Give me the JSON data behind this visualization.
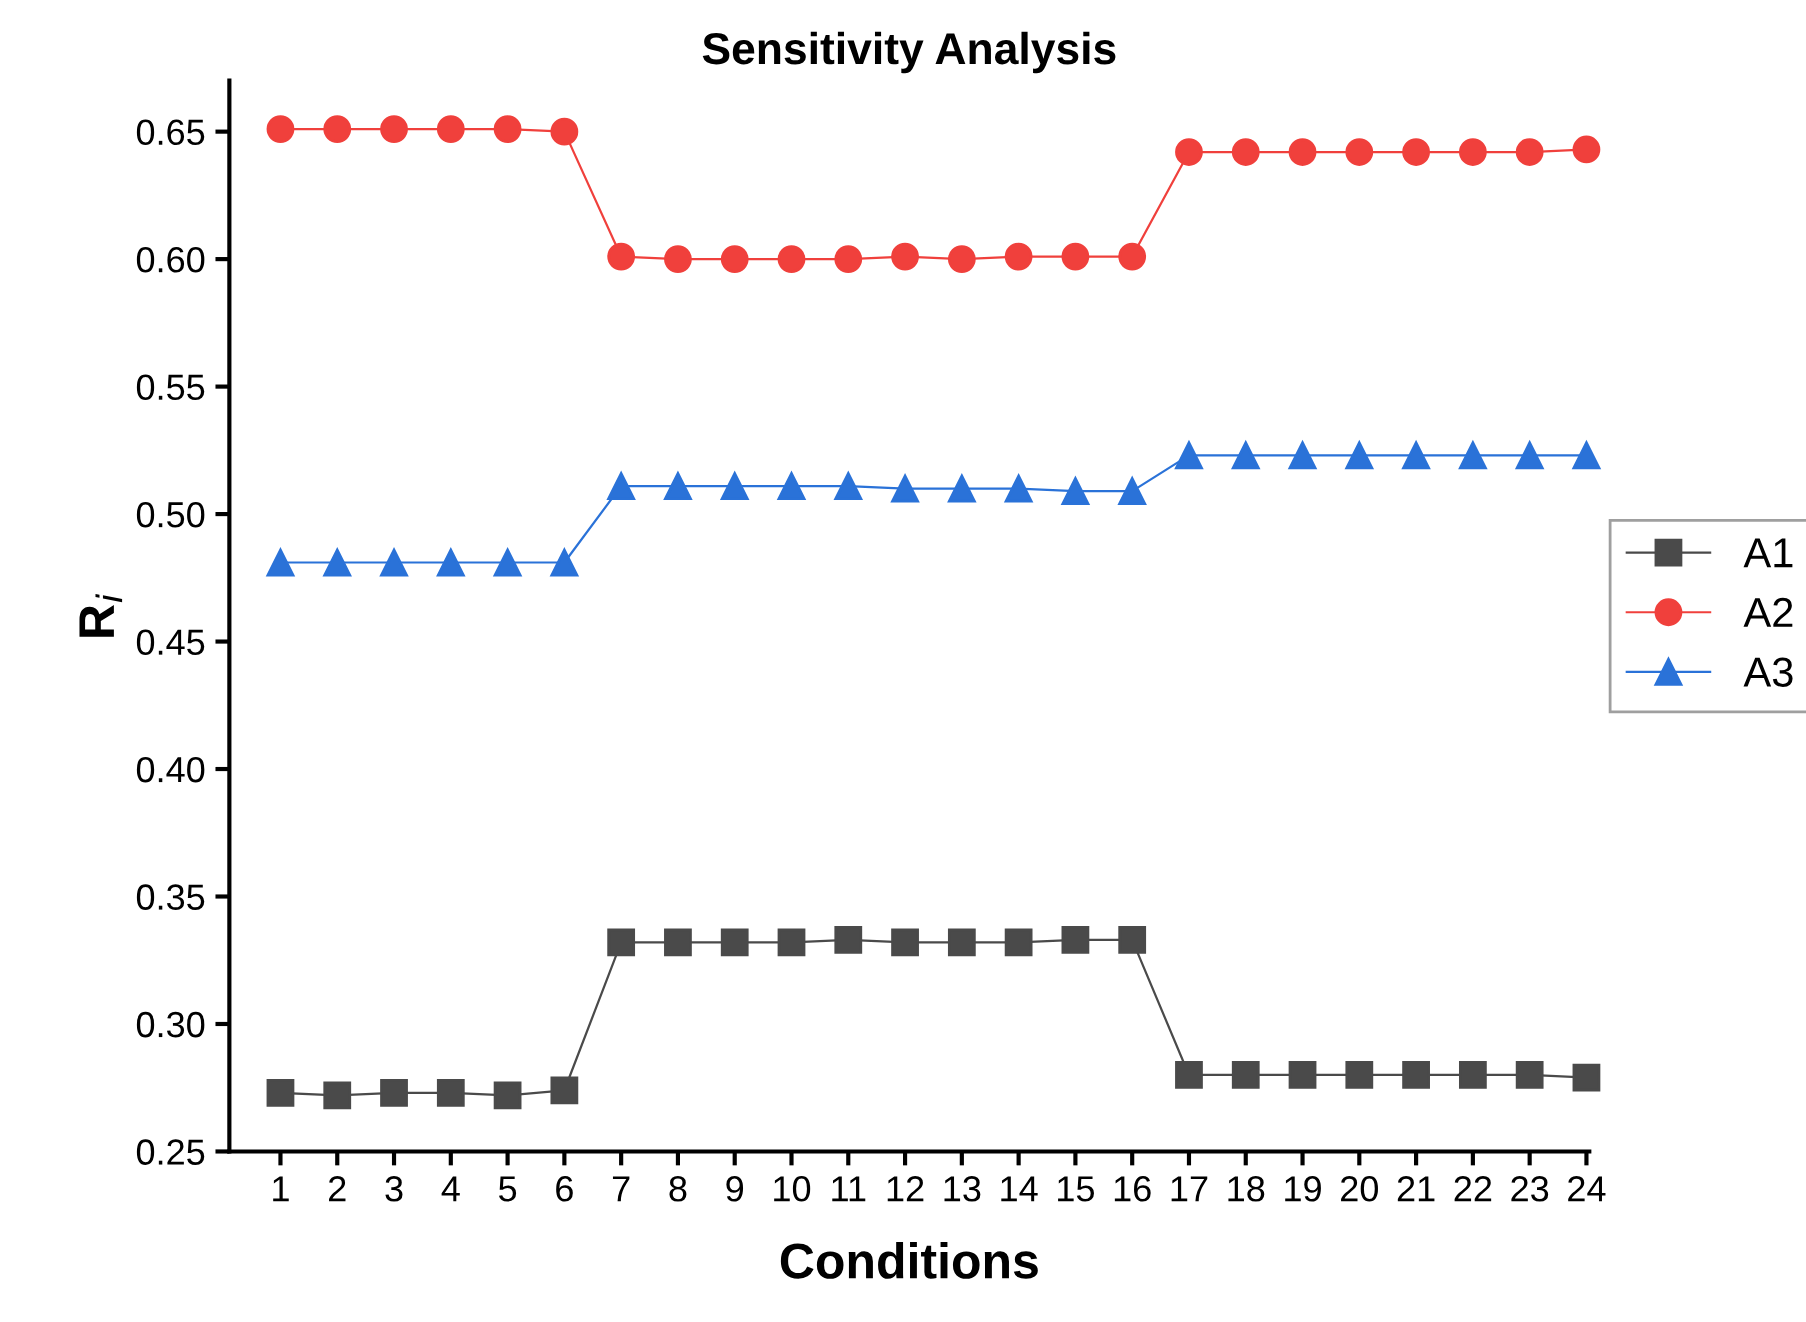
{
  "chart_data": {
    "type": "line",
    "title": "Sensitivity Analysis",
    "xlabel": "Conditions",
    "ylabel": "R$_{i}$",
    "categories": [
      "1",
      "2",
      "3",
      "4",
      "5",
      "6",
      "7",
      "8",
      "9",
      "10",
      "11",
      "12",
      "13",
      "14",
      "15",
      "16",
      "17",
      "18",
      "19",
      "20",
      "21",
      "22",
      "23",
      "24"
    ],
    "series": [
      {
        "name": "A1",
        "color": "#4a4a4a",
        "marker": "square",
        "values": [
          0.273,
          0.272,
          0.273,
          0.273,
          0.272,
          0.274,
          0.332,
          0.332,
          0.332,
          0.332,
          0.333,
          0.332,
          0.332,
          0.332,
          0.333,
          0.333,
          0.28,
          0.28,
          0.28,
          0.28,
          0.28,
          0.28,
          0.28,
          0.279
        ]
      },
      {
        "name": "A2",
        "color": "#f0403c",
        "marker": "circle",
        "values": [
          0.651,
          0.651,
          0.651,
          0.651,
          0.651,
          0.65,
          0.601,
          0.6,
          0.6,
          0.6,
          0.6,
          0.601,
          0.6,
          0.601,
          0.601,
          0.601,
          0.642,
          0.642,
          0.642,
          0.642,
          0.642,
          0.642,
          0.642,
          0.643
        ]
      },
      {
        "name": "A3",
        "color": "#2a72d8",
        "marker": "triangle",
        "values": [
          0.481,
          0.481,
          0.481,
          0.481,
          0.481,
          0.481,
          0.511,
          0.511,
          0.511,
          0.511,
          0.511,
          0.51,
          0.51,
          0.51,
          0.509,
          0.509,
          0.523,
          0.523,
          0.523,
          0.523,
          0.523,
          0.523,
          0.523,
          0.523
        ]
      }
    ],
    "ylim": [
      0.25,
      0.67
    ],
    "yticks": [
      {
        "value": 0.25,
        "label": "0.25"
      },
      {
        "value": 0.3,
        "label": "0.30"
      },
      {
        "value": 0.35,
        "label": "0.35"
      },
      {
        "value": 0.4,
        "label": "0.40"
      },
      {
        "value": 0.45,
        "label": "0.45"
      },
      {
        "value": 0.5,
        "label": "0.50"
      },
      {
        "value": 0.55,
        "label": "0.55"
      },
      {
        "value": 0.6,
        "label": "0.60"
      },
      {
        "value": 0.65,
        "label": "0.65"
      }
    ],
    "grid": false,
    "legend": "right",
    "line_style": "solid"
  }
}
